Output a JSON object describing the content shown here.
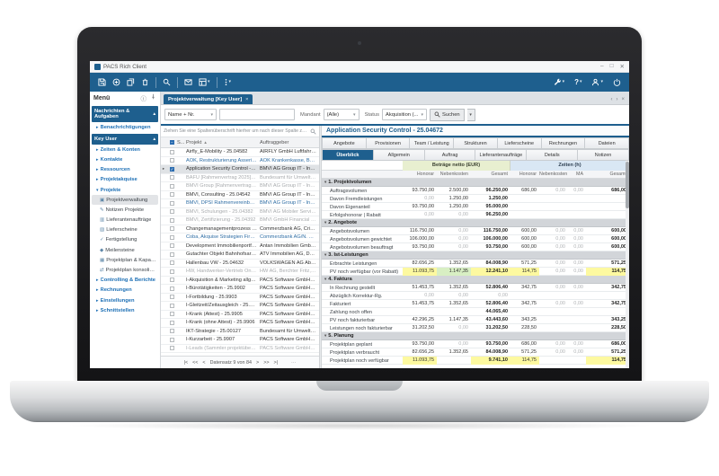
{
  "window": {
    "title": "PACS Rich Client",
    "minimize": "–",
    "maximize": "□",
    "close": "✕"
  },
  "icons": {
    "help": "?"
  },
  "menu": {
    "header": "Menü",
    "sections": [
      {
        "label": "Nachrichten & Aufgaben",
        "items": [
          {
            "label": "Benachrichtigungen",
            "type": "parent",
            "icon": "bell"
          }
        ]
      },
      {
        "label": "Key User",
        "items": [
          {
            "label": "Zeiten & Konten",
            "type": "parent",
            "icon": "clock"
          },
          {
            "label": "Kontakte",
            "type": "parent",
            "icon": "contacts"
          },
          {
            "label": "Ressourcen",
            "type": "parent",
            "icon": "resources"
          },
          {
            "label": "Projektakquise",
            "type": "parent",
            "icon": "acquisition"
          },
          {
            "label": "Projekte",
            "type": "parent",
            "expanded": true,
            "icon": "projects"
          },
          {
            "label": "Projektverwaltung",
            "type": "child",
            "selected": true,
            "icon": "person"
          },
          {
            "label": "Notizen Projekte",
            "type": "child",
            "icon": "note"
          },
          {
            "label": "Lieferantenaufträge",
            "type": "child",
            "icon": "truck"
          },
          {
            "label": "Lieferscheine",
            "type": "child",
            "icon": "package"
          },
          {
            "label": "Fertigstellung",
            "type": "child",
            "icon": "check"
          },
          {
            "label": "Meilensteine",
            "type": "child",
            "icon": "milestone"
          },
          {
            "label": "Projektplan & Kapazitäten",
            "type": "child",
            "icon": "calendar"
          },
          {
            "label": "Projektplan konsolidieren",
            "type": "child",
            "icon": "merge"
          },
          {
            "label": "Controlling & Berichte",
            "type": "parent",
            "icon": "report"
          },
          {
            "label": "Rechnungen",
            "type": "parent",
            "icon": "invoice"
          },
          {
            "label": "Einstellungen",
            "type": "parent",
            "icon": "settings"
          },
          {
            "label": "Schnittstellen",
            "type": "parent",
            "icon": "interfaces"
          }
        ]
      }
    ]
  },
  "tabstrip": {
    "tab_label": "Projektverwaltung [Key User]",
    "close": "×",
    "prev": "‹",
    "next": "›",
    "close_all": "×"
  },
  "filterbar": {
    "field_selector": "Name + Nr.",
    "search_value": "",
    "mandant_label": "Mandant",
    "mandant_value": "(Alle)",
    "status_label": "Status",
    "status_value": "Akquisition (...",
    "search_button": "Suchen"
  },
  "list": {
    "group_hint": "Ziehen Sie eine Spaltenüberschrift hierher um nach dieser Spalte zu gruppieren",
    "columns": {
      "status": "S...",
      "projekt": "Projekt",
      "auftraggeber": "Auftraggeber"
    },
    "sort_icon": "▲",
    "rows": [
      {
        "projekt": "Airfly_E-Mobility - 25.04582",
        "auftraggeber": "AIRFLY GmbH Luftfahrttechnik Inte...",
        "style": "normal"
      },
      {
        "projekt": "AOK, Restrukturierung Asseris - Akqu.-24.232",
        "auftraggeber": "AOK Krankenkasse, Bertenbreiter H...",
        "style": "link"
      },
      {
        "projekt": "Application Security Control - 25.04672",
        "auftraggeber": "BMVI AG Group IT - Infrastructure ...",
        "style": "normal",
        "selected": true,
        "checked": true
      },
      {
        "projekt": "BAFU [Rahmenvertrag 2025] - 25.00147",
        "auftraggeber": "Bundesamt für Umwelt BAFU, Mülle...",
        "style": "muted"
      },
      {
        "projekt": "BMVI Group [Rahmenvertrag] - 24.04352",
        "auftraggeber": "BMVI AG Group IT - Infrastructure ...",
        "style": "muted"
      },
      {
        "projekt": "BMVI, Consulting - 25.04542",
        "auftraggeber": "BMVI AG Group IT - Infrastructure ...",
        "style": "normal"
      },
      {
        "projekt": "BMVI, DPSI Rahmenvereinbarung 24/7 - 25.04662",
        "auftraggeber": "BMVI AG Group IT - Infrastructure ...",
        "style": "link"
      },
      {
        "projekt": "BMVI, Schulungen - 25.04382",
        "auftraggeber": "BMVI AG Mobiler Service, DE-4678...",
        "style": "muted"
      },
      {
        "projekt": "BMVI, Zertifizierung - 25.04392",
        "auftraggeber": "BMVI GmbH Financial Services, DE...",
        "style": "muted"
      },
      {
        "projekt": "Changemanagementprozess - 25.04682",
        "auftraggeber": "Commerzbank AG, Crispy Betina, ...",
        "style": "normal"
      },
      {
        "projekt": "Coba, Akquise Strategien Firmenkunden - Akqu.-26...",
        "auftraggeber": "Commerzbank AG/N. München, Abt...",
        "style": "link"
      },
      {
        "projekt": "Development Immobilienportfolio (Postgres) - 25.045...",
        "auftraggeber": "Antan Immobilien GmbH, DE-47602...",
        "style": "normal"
      },
      {
        "projekt": "Gutachter Objekt Bahnhofsarkaden Göttingen - 25.0...",
        "auftraggeber": "ATV Immobilien AG, DE-38640 Gosla...",
        "style": "normal"
      },
      {
        "projekt": "Hallenbau VW - 25.04632",
        "auftraggeber": "VOLKSWAGEN AG Abt. Entwicklung...",
        "style": "normal"
      },
      {
        "projekt": "HW, Handwerker-Vertrieb Onlineplattform - 25.00167",
        "auftraggeber": "HW AG, Berchter Fritz, CH-9003 St...",
        "style": "muted"
      },
      {
        "projekt": "I-Akquisition & Marketing allgemein - 25.9901",
        "auftraggeber": "PACS Software GmbH & Co. KG, D...",
        "style": "normal"
      },
      {
        "projekt": "I-Bürotätigkeiten - 25.9902",
        "auftraggeber": "PACS Software GmbH & Co. KG, D...",
        "style": "normal"
      },
      {
        "projekt": "I-Fortbildung - 25.9903",
        "auftraggeber": "PACS Software GmbH & Co. KG, D...",
        "style": "normal"
      },
      {
        "projekt": "I-Gleitzeit/Zeitausgleich - 25.9904",
        "auftraggeber": "PACS Software GmbH & Co. KG, D...",
        "style": "normal"
      },
      {
        "projekt": "I-Krank (Attest) - 25.9905",
        "auftraggeber": "PACS Software GmbH & Co. KG, D...",
        "style": "normal"
      },
      {
        "projekt": "I-Krank (ohne Attest) - 25.9906",
        "auftraggeber": "PACS Software GmbH & Co. KG, D...",
        "style": "normal"
      },
      {
        "projekt": "IKT-Strategie - 25.00127",
        "auftraggeber": "Bundesamt für Umwelt BWFU, CH-...",
        "style": "normal"
      },
      {
        "projekt": "I-Kurzarbeit - 25.9907",
        "auftraggeber": "PACS Software GmbH & Co. KG, D...",
        "style": "normal"
      },
      {
        "projekt": "I-Leads (Sammler projektübergreifend) - Akqu.-25.0...",
        "auftraggeber": "PACS Software GmbH & Co. KG, D...",
        "style": "muted"
      }
    ],
    "pager": {
      "first": "|<",
      "fast_prev": "<<",
      "prev": "<",
      "label": "Datensatz 9 von 84",
      "next": ">",
      "fast_next": ">>",
      "last": ">|",
      "more": "···"
    }
  },
  "detail": {
    "title": "Application Security Control - 25.04672",
    "tabs_row1": [
      "Angebote",
      "Provisionen",
      "Team / Leistung",
      "Strukturen",
      "Lieferscheine",
      "Rechnungen",
      "Dateien"
    ],
    "tabs_row2": [
      "Überblick",
      "Allgemein",
      "Auftrag",
      "Lieferantenaufträge",
      "Details",
      "Notizen"
    ],
    "active_tab": "Überblick",
    "groups": {
      "money": "Beträge netto (EUR)",
      "time": "Zeiten (h)"
    },
    "columns": [
      "Honorar",
      "Nebenkosten",
      "Gesamt",
      "Honorar",
      "Nebenkosten",
      "MA",
      "Gesamt"
    ],
    "sections": [
      {
        "label": "1. Projektvolumen",
        "rows": [
          {
            "label": "Auftragsvolumen",
            "cells": [
              "93.750,00",
              "2.500,00",
              "96.250,00",
              "686,00",
              "0,00",
              "0,00",
              "686,00"
            ]
          },
          {
            "label": "Davon Fremdleistungen",
            "cells": [
              "0,00",
              "1.250,00",
              "1.250,00",
              "",
              "",
              "",
              ""
            ]
          },
          {
            "label": "Davon Eigenanteil",
            "cells": [
              "93.750,00",
              "1.250,00",
              "95.000,00",
              "",
              "",
              "",
              ""
            ]
          },
          {
            "label": "Erfolgshonorar | Rabatt",
            "cells": [
              "0,00",
              "0,00",
              "96.250,00",
              "",
              "",
              "",
              ""
            ]
          }
        ]
      },
      {
        "label": "2. Angebote",
        "rows": [
          {
            "label": "Angebotsvolumen",
            "cells": [
              "116.750,00",
              "0,00",
              "116.750,00",
              "600,00",
              "0,00",
              "0,00",
              "600,00"
            ]
          },
          {
            "label": "Angebotsvolumen gewichtet",
            "cells": [
              "106.000,00",
              "0,00",
              "106.000,00",
              "600,00",
              "0,00",
              "0,00",
              "600,00"
            ]
          },
          {
            "label": "Angebotsvolumen beauftragt",
            "cells": [
              "93.750,00",
              "0,00",
              "93.750,00",
              "600,00",
              "0,00",
              "0,00",
              "600,00"
            ]
          }
        ]
      },
      {
        "label": "3. Ist-Leistungen",
        "rows": [
          {
            "label": "Erbrachte Leistungen",
            "cells": [
              "82.656,25",
              "1.352,65",
              "84.008,90",
              "571,25",
              "0,00",
              "0,00",
              "571,25"
            ]
          },
          {
            "label": "PV noch verfügbar (vor Rabatt)",
            "cells": [
              "11.093,75",
              "1.147,35",
              "12.241,10",
              "114,75",
              "0,00",
              "0,00",
              "114,75"
            ],
            "hl": {
              "0": "y",
              "1": "g",
              "2": "y",
              "3": "y",
              "6": "y"
            }
          }
        ]
      },
      {
        "label": "4. Faktura",
        "rows": [
          {
            "label": "In Rechnung gestellt",
            "cells": [
              "51.453,75",
              "1.352,65",
              "52.806,40",
              "342,75",
              "0,00",
              "0,00",
              "342,75"
            ]
          },
          {
            "label": "Abzüglich Korrektur-Rg.",
            "cells": [
              "0,00",
              "0,00",
              "0,00",
              "",
              "",
              "",
              ""
            ]
          },
          {
            "label": "Fakturiert",
            "cells": [
              "51.453,75",
              "1.352,65",
              "52.806,40",
              "342,75",
              "0,00",
              "0,00",
              "342,75"
            ]
          },
          {
            "label": "Zahlung noch offen",
            "cells": [
              "",
              "",
              "44.065,40",
              "",
              "",
              "",
              ""
            ]
          },
          {
            "label": "PV noch fakturierbar",
            "cells": [
              "42.296,25",
              "1.147,35",
              "43.443,60",
              "343,25",
              "",
              "",
              "343,25"
            ]
          },
          {
            "label": "Leistungen noch fakturierbar",
            "cells": [
              "31.202,50",
              "0,00",
              "31.202,50",
              "228,50",
              "",
              "",
              "228,50"
            ]
          }
        ]
      },
      {
        "label": "5. Planung",
        "rows": [
          {
            "label": "Projektplan geplant",
            "cells": [
              "93.750,00",
              "0,00",
              "93.750,00",
              "686,00",
              "0,00",
              "0,00",
              "686,00"
            ]
          },
          {
            "label": "Projektplan verbraucht",
            "cells": [
              "82.656,25",
              "1.352,65",
              "84.008,90",
              "571,25",
              "0,00",
              "0,00",
              "571,25"
            ]
          },
          {
            "label": "Projektplan noch verfügbar",
            "cells": [
              "11.093,75",
              "",
              "9.741,10",
              "114,75",
              "",
              "",
              "114,75"
            ],
            "hl": {
              "0": "y",
              "2": "y",
              "3": "y",
              "6": "y"
            }
          }
        ]
      }
    ]
  }
}
